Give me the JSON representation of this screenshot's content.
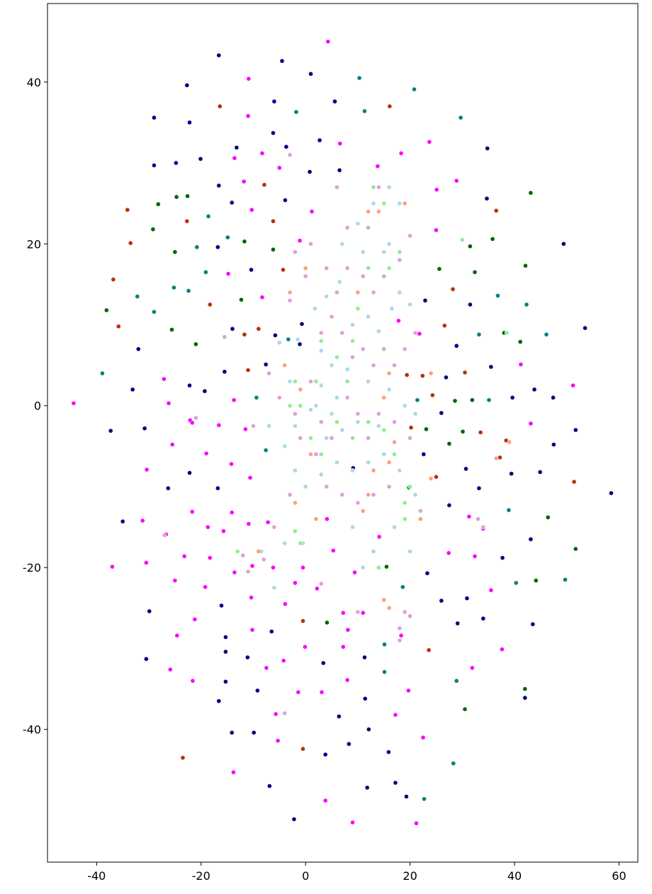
{
  "chart_data": {
    "type": "scatter",
    "xlim": [
      -49.4,
      63.6
    ],
    "ylim": [
      -56.4,
      49.7
    ],
    "xticks": [
      -40,
      -20,
      0,
      20,
      40,
      60
    ],
    "yticks": [
      -40,
      -20,
      0,
      20,
      40
    ],
    "grid": false,
    "series": [
      {
        "color": "#000080",
        "x": [
          -16.6,
          -4.5,
          1,
          -22.7,
          -29,
          -22.2,
          -6,
          5.6,
          -6.2,
          2.7,
          -13.2,
          -3.7,
          -20.1,
          -29,
          -24.8,
          0.8,
          6.5,
          -16.6,
          -14.1,
          -3.9,
          34.7,
          34.8,
          49.4,
          -16.8,
          -10.4,
          22.9,
          31.5,
          -14,
          -0.7,
          -1.1,
          -5.8,
          53.5,
          -32,
          -15.5,
          -7.6,
          28.9,
          26.9,
          35.5,
          -33.1,
          -19.3,
          -22.2,
          43.8,
          39.6,
          47.4,
          26,
          -37.3,
          -30.8,
          51.7,
          47.5,
          22.6,
          30.7,
          39.4,
          44.9,
          9.1,
          -22.2,
          -26.3,
          33.2,
          -16.8,
          58.5,
          27.5,
          -35,
          37.7,
          43.1,
          23.3,
          -16.1,
          -29.9,
          -6.5,
          26,
          30.9,
          34,
          29.1,
          43.5,
          -15.3,
          -15.3,
          -30.5,
          -11.1,
          3.4,
          11.3,
          -15.3,
          -9.2,
          -16.6,
          11.4,
          42,
          6.4,
          -14.1,
          -9.9,
          12.1,
          8.3,
          15.9,
          3.8,
          -6.9,
          11.8,
          17.2,
          19.3,
          -2.2
        ],
        "values": [
          43.3,
          42.6,
          41,
          39.6,
          35.6,
          35,
          37.6,
          37.6,
          33.7,
          32.8,
          31.9,
          32,
          30.5,
          29.7,
          30,
          28.9,
          29.1,
          27.2,
          25.1,
          25.4,
          25.6,
          31.8,
          20,
          19.6,
          16.8,
          13,
          12.5,
          9.5,
          10.1,
          7.6,
          8.7,
          9.6,
          7,
          4.2,
          5.1,
          7.4,
          3.5,
          4.8,
          2,
          1.8,
          2.5,
          2,
          1,
          1,
          -0.9,
          -3.1,
          -2.8,
          -3,
          -4.8,
          -6,
          -7.8,
          -8.4,
          -8.2,
          -7.7,
          -8.3,
          -10.2,
          -10.2,
          -10.2,
          -10.8,
          -12.3,
          -14.3,
          -18.8,
          -16.5,
          -20.7,
          -24.7,
          -25.4,
          -27.9,
          -24.1,
          -23.8,
          -26.3,
          -26.9,
          -27,
          -28.6,
          -30.4,
          -31.3,
          -31.1,
          -31.8,
          -31.1,
          -34.1,
          -35.2,
          -36.5,
          -36.2,
          -36.1,
          -38.4,
          -40.4,
          -40.4,
          -40,
          -41.8,
          -42.8,
          -43.1,
          -47,
          -47.2,
          -46.6,
          -48.3,
          -51.1
        ]
      },
      {
        "color": "#ff00ff",
        "x": [
          4.3,
          -10.9,
          -11,
          6.6,
          23.7,
          18.3,
          -8.3,
          -13.6,
          13.8,
          -5,
          28.9,
          25.1,
          -11.8,
          -10.3,
          1.2,
          25,
          -1.1,
          -14.8,
          -8.3,
          17.8,
          21.8,
          41.2,
          51.2,
          -27.1,
          -26.2,
          -44.4,
          -13.7,
          -22.1,
          -21.7,
          -16.6,
          -11.5,
          43.1,
          -25.5,
          -19,
          -14.2,
          -30.4,
          -10.6,
          -21.7,
          -31.2,
          -14.1,
          -10.9,
          -7.2,
          4.1,
          31.3,
          34,
          -15.7,
          -18.7,
          -26.7,
          14.1,
          5.3,
          -23.2,
          -18.3,
          27.4,
          32.4,
          -30.5,
          -37,
          -10.2,
          -6.2,
          -0.5,
          -13.6,
          9.4,
          -25,
          -2,
          -19.2,
          2.2,
          35.5,
          -10.4,
          -3.9,
          -21.2,
          11,
          7.2,
          18.3,
          -24.6,
          -10.2,
          8.1,
          -0.1,
          7.2,
          37.6,
          -4.2,
          -7.5,
          -25.9,
          31.9,
          8,
          -21.6,
          19.7,
          -1.4,
          3.1,
          -5.7,
          17.2,
          -5.3,
          22.5,
          -13.8,
          3.8,
          9,
          21.2
        ],
        "values": [
          45,
          40.4,
          35.8,
          32.4,
          32.6,
          31.2,
          31.2,
          30.6,
          29.6,
          29.4,
          27.8,
          26.7,
          27.7,
          24.2,
          24,
          21.7,
          20.4,
          16.3,
          13.4,
          10.5,
          8.9,
          5.1,
          2.5,
          3.3,
          0.3,
          0.3,
          0.7,
          -1.8,
          -2.1,
          -2.4,
          -2.9,
          -2.2,
          -4.8,
          -5.9,
          -7.2,
          -7.9,
          -8.9,
          -13.1,
          -14.2,
          -13.2,
          -14.6,
          -14.4,
          -14,
          -13.7,
          -15.2,
          -15.5,
          -15,
          -15.9,
          -16.2,
          -17.9,
          -18.6,
          -18.8,
          -18.2,
          -18.6,
          -19.4,
          -19.9,
          -19.8,
          -20,
          -20,
          -20.6,
          -20.6,
          -21.6,
          -21.9,
          -22.4,
          -22.6,
          -22.8,
          -23.7,
          -24.5,
          -26.4,
          -25.6,
          -25.6,
          -28.4,
          -28.4,
          -27.7,
          -27.7,
          -29.8,
          -29.8,
          -30.1,
          -31.5,
          -32.4,
          -32.6,
          -32.4,
          -33.9,
          -34,
          -35.2,
          -35.4,
          -35.4,
          -38.1,
          -38.2,
          -41.4,
          -41,
          -45.3,
          -48.8,
          -51.5,
          -51.6
        ]
      },
      {
        "color": "#008080",
        "x": [
          20.8,
          10.3,
          -1.8,
          11.3,
          29.7,
          -18.6,
          -14.9,
          -20.8,
          -19.1,
          -25.2,
          -22.4,
          -32.2,
          -29,
          36.8,
          42.3,
          33.2,
          46.1,
          -3.3,
          -38.9,
          -9.4,
          21.4,
          35.1,
          -7.6,
          38.9,
          40.3,
          49.7,
          18.6,
          15.1,
          15.1,
          28.9,
          28.3,
          22.7
        ],
        "values": [
          39.1,
          40.5,
          36.3,
          36.4,
          35.6,
          23.4,
          20.8,
          19.6,
          16.5,
          14.6,
          14.2,
          13.5,
          11.6,
          13.6,
          12.5,
          8.8,
          8.8,
          8.2,
          4,
          1,
          0.7,
          0.7,
          -5.5,
          -12.9,
          -21.9,
          -21.5,
          -22.4,
          -29.5,
          -32.9,
          -34,
          -44.2,
          -48.6
        ]
      },
      {
        "color": "#006400",
        "x": [
          -24.7,
          -28.2,
          -22.6,
          43.1,
          -29.2,
          -11.7,
          -25,
          -6.2,
          31.5,
          35.8,
          25.6,
          32.4,
          42.1,
          -38.1,
          -12.3,
          -25.6,
          -21,
          38,
          41.1,
          28.6,
          31.9,
          23.1,
          30.1,
          27.5,
          19.8,
          46.4,
          51.7,
          44.1,
          15.5,
          4.1,
          42,
          30.5
        ],
        "values": [
          25.8,
          24.9,
          25.9,
          26.3,
          21.8,
          20.3,
          19,
          19.3,
          19.7,
          20.6,
          16.9,
          16.5,
          17.3,
          11.8,
          13.1,
          9.4,
          7.6,
          9,
          7.9,
          0.6,
          0.7,
          -2.9,
          -3.2,
          -4.7,
          -10.1,
          -13.8,
          -17.7,
          -21.6,
          -19.9,
          -26.8,
          -35,
          -37.5
        ]
      },
      {
        "color": "#b5300e",
        "x": [
          -16.4,
          16.1,
          -34.1,
          -7.9,
          -22.7,
          -6.2,
          36.5,
          -33.5,
          -36.8,
          -18.3,
          -4.3,
          28.2,
          -35.8,
          -11.7,
          -9,
          26.6,
          -11,
          19.4,
          22.4,
          30.5,
          24.3,
          20.2,
          33.5,
          37.2,
          38.4,
          25,
          51.4,
          -0.5,
          23.6,
          -0.5,
          -23.5
        ],
        "values": [
          37,
          37,
          24.2,
          27.3,
          22.8,
          22.8,
          24.1,
          20.1,
          15.6,
          12.5,
          16.8,
          14.4,
          9.8,
          8.8,
          9.5,
          9.9,
          4.4,
          3.8,
          3.7,
          4.1,
          1.3,
          -2.7,
          -3.3,
          -6.4,
          -4.3,
          -8.8,
          -9.4,
          -26.6,
          -30.2,
          -42.4,
          -43.5
        ]
      },
      {
        "color": "#add8e6",
        "x": [
          -5,
          -1.5,
          1.8,
          4,
          6.5,
          9,
          12,
          14,
          16.5,
          18,
          20,
          7,
          10,
          13,
          16,
          11,
          15,
          5,
          3,
          8,
          12,
          16,
          19,
          1,
          -2,
          -4,
          -2,
          0,
          3,
          6,
          9,
          12,
          15,
          18,
          21,
          22,
          17,
          -7,
          -8.5,
          -6,
          9,
          11,
          5,
          7,
          10,
          14,
          -3,
          2,
          4,
          -4,
          20,
          13,
          -0.5,
          3,
          6,
          18,
          16,
          21
        ],
        "values": [
          7.8,
          8.2,
          12,
          13.5,
          15.3,
          10,
          11,
          9.2,
          12,
          14,
          12.5,
          20,
          22.5,
          25,
          27,
          19,
          19,
          5,
          6.8,
          4.5,
          3,
          2,
          0,
          -0.5,
          -2.5,
          -5,
          -8,
          -10,
          -8.5,
          -7,
          -8,
          -7,
          -6,
          -8,
          -11,
          -13,
          -15,
          -2.5,
          -18,
          -22.5,
          -15,
          -20,
          -1,
          -3,
          -2,
          -2.5,
          3,
          0,
          -4,
          -17,
          -18,
          -18,
          -17,
          2.5,
          1,
          25,
          20,
          -1
        ]
      },
      {
        "color": "#dda0dd",
        "x": [
          -2,
          0,
          1,
          4,
          6,
          8,
          11,
          13,
          15,
          18,
          20,
          -3,
          3,
          5,
          7,
          9,
          11,
          13,
          15,
          17,
          19,
          21,
          -5,
          -2,
          1,
          3,
          5,
          8,
          10,
          12,
          14,
          17,
          20,
          -1,
          2,
          4,
          7,
          10,
          13,
          16,
          -3,
          -6,
          -7,
          -10,
          -12,
          -11,
          -8,
          3,
          14,
          19,
          20,
          18,
          18,
          10,
          6,
          8,
          12,
          14,
          -3,
          -15.5,
          -27,
          -21,
          -4,
          34,
          33,
          22
        ],
        "values": [
          19,
          16,
          20,
          17,
          14,
          17,
          16,
          14,
          16,
          18,
          21,
          13,
          9,
          11,
          9,
          6,
          7,
          5,
          7,
          5,
          7,
          9,
          1,
          -1,
          3,
          -2,
          -4,
          1,
          -1,
          -4,
          -1,
          -2,
          -4,
          -4,
          -6,
          -10,
          -11,
          -12,
          -11,
          -10,
          -11,
          -15,
          4,
          -2.5,
          -18.5,
          -20.5,
          -19,
          -22,
          -20,
          -25.5,
          -26,
          -27.5,
          -29,
          -25.5,
          27,
          22,
          22,
          27,
          31,
          8.5,
          -16,
          -1.5,
          -38,
          -15,
          -14,
          -13
        ]
      },
      {
        "color": "#90ee90",
        "x": [
          2,
          -1,
          -3,
          1,
          3,
          6,
          9,
          12,
          15,
          17,
          3,
          6,
          9,
          12,
          16,
          18,
          15,
          13,
          -2,
          -1,
          14,
          19,
          19,
          20,
          -13,
          8,
          10,
          30,
          38.5,
          -2
        ],
        "values": [
          3,
          0,
          0,
          -4,
          -6,
          -2,
          -4,
          -2,
          -3,
          -6,
          8,
          6,
          8,
          17,
          17,
          19,
          25,
          27,
          -15.5,
          -17,
          -20,
          -12,
          -14,
          -10,
          -18,
          3,
          12,
          20.5,
          9,
          3
        ]
      },
      {
        "color": "#ffa07a",
        "x": [
          0,
          -3,
          -1,
          1,
          2,
          -2,
          -4,
          12,
          14,
          19,
          10,
          16,
          15,
          11,
          12,
          13,
          16,
          17,
          22,
          24,
          15,
          16,
          -9,
          39,
          36.5,
          24
        ],
        "values": [
          17,
          14,
          2,
          -6,
          -14,
          -12,
          5,
          24,
          24,
          25,
          14,
          4,
          1,
          -13,
          -11,
          -8,
          -7,
          -4.5,
          -14,
          -9,
          -24,
          -25,
          -18,
          -4.5,
          -6.5,
          4
        ]
      }
    ]
  }
}
